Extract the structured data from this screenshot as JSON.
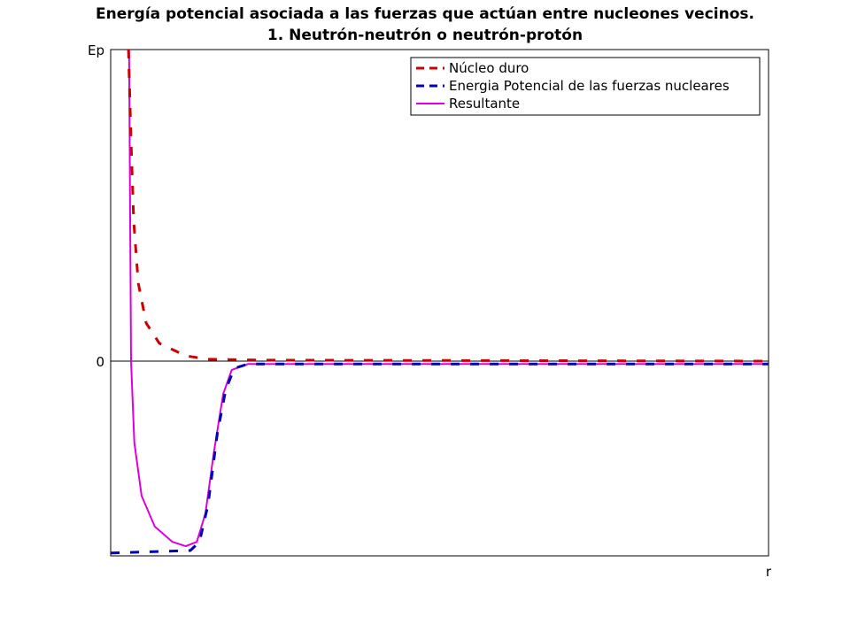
{
  "chart_data": {
    "type": "line",
    "title": "Energía potencial asociada a las fuerzas que actúan entre nucleones vecinos.",
    "subtitle": "1. Neutrón-neutrón o neutrón-protón",
    "xlabel": "r",
    "ylabel": "Ep",
    "xlim": [
      0,
      10
    ],
    "ylim": [
      -0.625,
      1
    ],
    "yticks": [
      {
        "value": 0,
        "label": "0"
      }
    ],
    "grid": false,
    "legend_position": "top-right",
    "series": [
      {
        "name": "Núcleo duro",
        "color": "#cc0000",
        "style": "dashed",
        "x": [
          0.27,
          0.31,
          0.35,
          0.42,
          0.54,
          0.74,
          1.14,
          1.48,
          2.36,
          10
        ],
        "y": [
          1.0,
          0.705,
          0.449,
          0.25,
          0.122,
          0.057,
          0.017,
          0.006,
          0.003,
          0
        ]
      },
      {
        "name": "Energia Potencial de las fuerzas nucleares",
        "color": "#0000bb",
        "style": "dashed",
        "x": [
          0,
          1.21,
          1.35,
          1.48,
          1.62,
          1.75,
          1.88,
          2.09,
          10
        ],
        "y": [
          -0.616,
          -0.608,
          -0.58,
          -0.46,
          -0.233,
          -0.091,
          -0.023,
          -0.009,
          -0.009
        ]
      },
      {
        "name": "Resultante",
        "color": "#dd00dd",
        "style": "solid",
        "x": [
          0.28,
          0.31,
          0.36,
          0.47,
          0.67,
          0.94,
          1.14,
          1.31,
          1.44,
          1.57,
          1.71,
          1.84,
          2.09,
          10
        ],
        "y": [
          1.0,
          0,
          -0.261,
          -0.432,
          -0.531,
          -0.58,
          -0.594,
          -0.58,
          -0.489,
          -0.29,
          -0.105,
          -0.028,
          -0.009,
          -0.009
        ]
      }
    ]
  }
}
